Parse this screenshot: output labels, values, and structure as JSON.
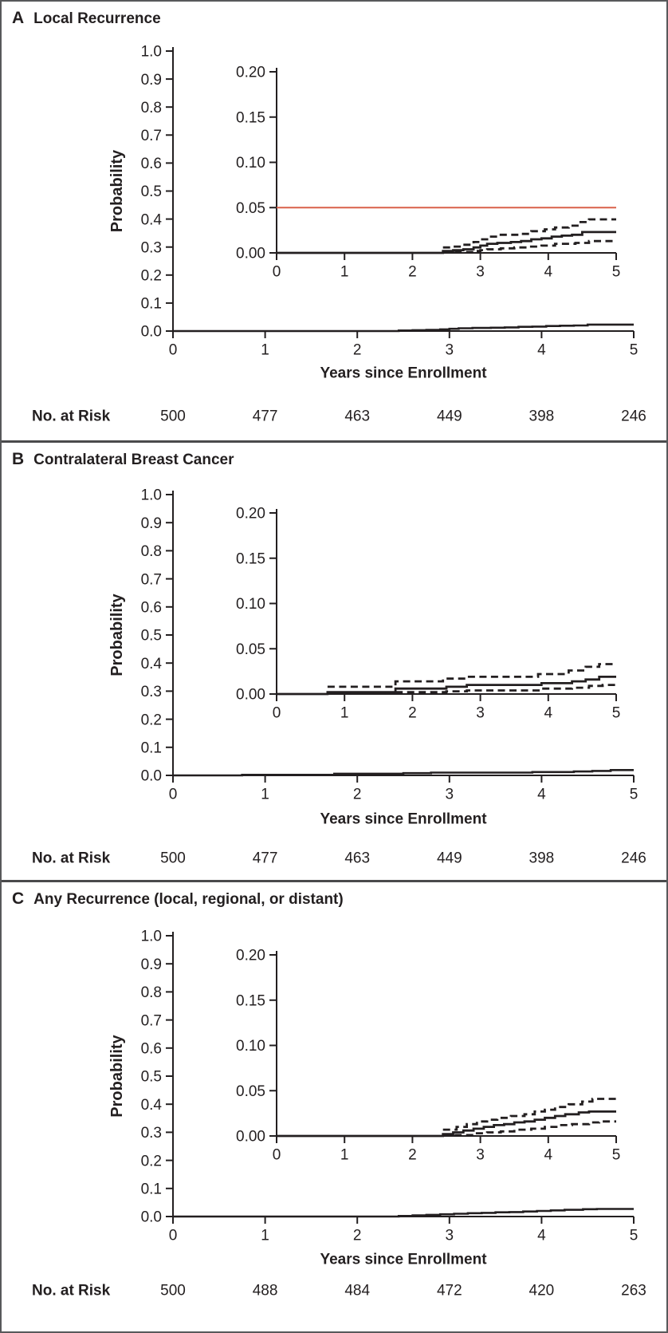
{
  "labels": {
    "probability": "Probability",
    "years": "Years since Enrollment",
    "no_at_risk": "No. at Risk"
  },
  "panels": [
    {
      "letter": "A",
      "title": "Local Recurrence"
    },
    {
      "letter": "B",
      "title": "Contralateral Breast Cancer"
    },
    {
      "letter": "C",
      "title": "Any Recurrence (local, regional, or distant)"
    }
  ],
  "colors": {
    "curve": "#231f20",
    "reference_line": "#d9604a",
    "axis": "#231f20",
    "divider": "#4a4a4c"
  },
  "chart_data": [
    {
      "type": "line",
      "panel": "A",
      "title": "Local Recurrence",
      "xlabel": "Years since Enrollment",
      "ylabel": "Probability",
      "grid": false,
      "legend_position": "none",
      "main_axis": {
        "xlim": [
          0,
          5
        ],
        "ylim": [
          0,
          1
        ],
        "xtick_labels": [
          "0",
          "1",
          "2",
          "3",
          "4",
          "5"
        ],
        "ytick_labels": [
          "1.0",
          "0.9",
          "0.8",
          "0.7",
          "0.6",
          "0.5",
          "0.4",
          "0.3",
          "0.2",
          "0.1",
          "0.0"
        ]
      },
      "inset_axis": {
        "xlim": [
          0,
          5
        ],
        "ylim": [
          0,
          0.2
        ],
        "xtick_labels": [
          "0",
          "1",
          "2",
          "3",
          "4",
          "5"
        ],
        "ytick_labels": [
          "0.20",
          "0.15",
          "0.10",
          "0.05",
          "0.00"
        ]
      },
      "reference_line": {
        "y": 0.05,
        "color": "#d9604a"
      },
      "series": [
        {
          "name": "cumulative incidence",
          "style": "solid",
          "step_points": [
            [
              0,
              0
            ],
            [
              2.45,
              0.002
            ],
            [
              2.6,
              0.003
            ],
            [
              2.75,
              0.004
            ],
            [
              2.9,
              0.006
            ],
            [
              3.0,
              0.008
            ],
            [
              3.1,
              0.01
            ],
            [
              3.25,
              0.011
            ],
            [
              3.45,
              0.012
            ],
            [
              3.6,
              0.013
            ],
            [
              3.75,
              0.015
            ],
            [
              3.9,
              0.016
            ],
            [
              4.05,
              0.018
            ],
            [
              4.2,
              0.019
            ],
            [
              4.35,
              0.02
            ],
            [
              4.5,
              0.023
            ]
          ]
        },
        {
          "name": "upper confidence limit",
          "style": "dashed",
          "step_points": [
            [
              2.45,
              0.006
            ],
            [
              2.6,
              0.007
            ],
            [
              2.75,
              0.009
            ],
            [
              2.9,
              0.012
            ],
            [
              3.0,
              0.015
            ],
            [
              3.1,
              0.018
            ],
            [
              3.3,
              0.02
            ],
            [
              3.6,
              0.021
            ],
            [
              3.75,
              0.024
            ],
            [
              3.95,
              0.026
            ],
            [
              4.1,
              0.028
            ],
            [
              4.3,
              0.03
            ],
            [
              4.45,
              0.034
            ],
            [
              4.6,
              0.037
            ]
          ]
        },
        {
          "name": "lower confidence limit",
          "style": "dashed",
          "step_points": [
            [
              2.45,
              0.001
            ],
            [
              2.9,
              0.002
            ],
            [
              3.0,
              0.003
            ],
            [
              3.1,
              0.004
            ],
            [
              3.3,
              0.005
            ],
            [
              3.5,
              0.006
            ],
            [
              3.7,
              0.007
            ],
            [
              3.9,
              0.008
            ],
            [
              4.1,
              0.01
            ],
            [
              4.4,
              0.011
            ],
            [
              4.6,
              0.013
            ]
          ]
        }
      ],
      "no_at_risk": {
        "label": "No. at Risk",
        "times": [
          0,
          1,
          2,
          3,
          4,
          5
        ],
        "counts": [
          500,
          477,
          463,
          449,
          398,
          246
        ]
      }
    },
    {
      "type": "line",
      "panel": "B",
      "title": "Contralateral Breast Cancer",
      "xlabel": "Years since Enrollment",
      "ylabel": "Probability",
      "grid": false,
      "legend_position": "none",
      "main_axis": {
        "xlim": [
          0,
          5
        ],
        "ylim": [
          0,
          1
        ],
        "xtick_labels": [
          "0",
          "1",
          "2",
          "3",
          "4",
          "5"
        ],
        "ytick_labels": [
          "1.0",
          "0.9",
          "0.8",
          "0.7",
          "0.6",
          "0.5",
          "0.4",
          "0.3",
          "0.2",
          "0.1",
          "0.0"
        ]
      },
      "inset_axis": {
        "xlim": [
          0,
          5
        ],
        "ylim": [
          0,
          0.2
        ],
        "xtick_labels": [
          "0",
          "1",
          "2",
          "3",
          "4",
          "5"
        ],
        "ytick_labels": [
          "0.20",
          "0.15",
          "0.10",
          "0.05",
          "0.00"
        ]
      },
      "reference_line": null,
      "series": [
        {
          "name": "cumulative incidence",
          "style": "solid",
          "step_points": [
            [
              0,
              0
            ],
            [
              0.75,
              0.002
            ],
            [
              1.75,
              0.006
            ],
            [
              2.5,
              0.008
            ],
            [
              2.8,
              0.01
            ],
            [
              3.9,
              0.012
            ],
            [
              4.35,
              0.014
            ],
            [
              4.55,
              0.016
            ],
            [
              4.75,
              0.019
            ]
          ]
        },
        {
          "name": "upper confidence limit",
          "style": "dashed",
          "step_points": [
            [
              0.75,
              0.008
            ],
            [
              1.75,
              0.014
            ],
            [
              2.45,
              0.017
            ],
            [
              2.8,
              0.019
            ],
            [
              3.85,
              0.022
            ],
            [
              4.3,
              0.026
            ],
            [
              4.55,
              0.03
            ],
            [
              4.75,
              0.033
            ]
          ]
        },
        {
          "name": "lower confidence limit",
          "style": "dashed",
          "step_points": [
            [
              0.75,
              0.0005
            ],
            [
              1.75,
              0.002
            ],
            [
              2.5,
              0.003
            ],
            [
              2.8,
              0.004
            ],
            [
              3.9,
              0.006
            ],
            [
              4.35,
              0.007
            ],
            [
              4.6,
              0.009
            ],
            [
              4.8,
              0.01
            ]
          ]
        }
      ],
      "no_at_risk": {
        "label": "No. at Risk",
        "times": [
          0,
          1,
          2,
          3,
          4,
          5
        ],
        "counts": [
          500,
          477,
          463,
          449,
          398,
          246
        ]
      }
    },
    {
      "type": "line",
      "panel": "C",
      "title": "Any Recurrence (local, regional, or distant)",
      "xlabel": "Years since Enrollment",
      "ylabel": "Probability",
      "grid": false,
      "legend_position": "none",
      "main_axis": {
        "xlim": [
          0,
          5
        ],
        "ylim": [
          0,
          1
        ],
        "xtick_labels": [
          "0",
          "1",
          "2",
          "3",
          "4",
          "5"
        ],
        "ytick_labels": [
          "1.0",
          "0.9",
          "0.8",
          "0.7",
          "0.6",
          "0.5",
          "0.4",
          "0.3",
          "0.2",
          "0.1",
          "0.0"
        ]
      },
      "inset_axis": {
        "xlim": [
          0,
          5
        ],
        "ylim": [
          0,
          0.2
        ],
        "xtick_labels": [
          "0",
          "1",
          "2",
          "3",
          "4",
          "5"
        ],
        "ytick_labels": [
          "0.20",
          "0.15",
          "0.10",
          "0.05",
          "0.00"
        ]
      },
      "reference_line": null,
      "series": [
        {
          "name": "cumulative incidence",
          "style": "solid",
          "step_points": [
            [
              0,
              0
            ],
            [
              2.45,
              0.002
            ],
            [
              2.6,
              0.004
            ],
            [
              2.75,
              0.006
            ],
            [
              2.9,
              0.008
            ],
            [
              3.05,
              0.01
            ],
            [
              3.2,
              0.012
            ],
            [
              3.35,
              0.013
            ],
            [
              3.5,
              0.015
            ],
            [
              3.65,
              0.016
            ],
            [
              3.8,
              0.018
            ],
            [
              3.95,
              0.02
            ],
            [
              4.1,
              0.022
            ],
            [
              4.25,
              0.024
            ],
            [
              4.45,
              0.026
            ],
            [
              4.6,
              0.027
            ]
          ]
        },
        {
          "name": "upper confidence limit",
          "style": "dashed",
          "step_points": [
            [
              2.45,
              0.007
            ],
            [
              2.65,
              0.01
            ],
            [
              2.8,
              0.013
            ],
            [
              2.95,
              0.016
            ],
            [
              3.1,
              0.018
            ],
            [
              3.25,
              0.02
            ],
            [
              3.45,
              0.022
            ],
            [
              3.65,
              0.024
            ],
            [
              3.8,
              0.027
            ],
            [
              3.95,
              0.029
            ],
            [
              4.1,
              0.032
            ],
            [
              4.3,
              0.035
            ],
            [
              4.5,
              0.038
            ],
            [
              4.65,
              0.041
            ]
          ]
        },
        {
          "name": "lower confidence limit",
          "style": "dashed",
          "step_points": [
            [
              2.45,
              0.001
            ],
            [
              2.9,
              0.003
            ],
            [
              3.1,
              0.004
            ],
            [
              3.3,
              0.005
            ],
            [
              3.5,
              0.007
            ],
            [
              3.75,
              0.008
            ],
            [
              3.95,
              0.01
            ],
            [
              4.15,
              0.012
            ],
            [
              4.35,
              0.013
            ],
            [
              4.6,
              0.015
            ],
            [
              4.75,
              0.016
            ]
          ]
        }
      ],
      "no_at_risk": {
        "label": "No. at Risk",
        "times": [
          0,
          1,
          2,
          3,
          4,
          5
        ],
        "counts": [
          500,
          488,
          484,
          472,
          420,
          263
        ]
      }
    }
  ]
}
